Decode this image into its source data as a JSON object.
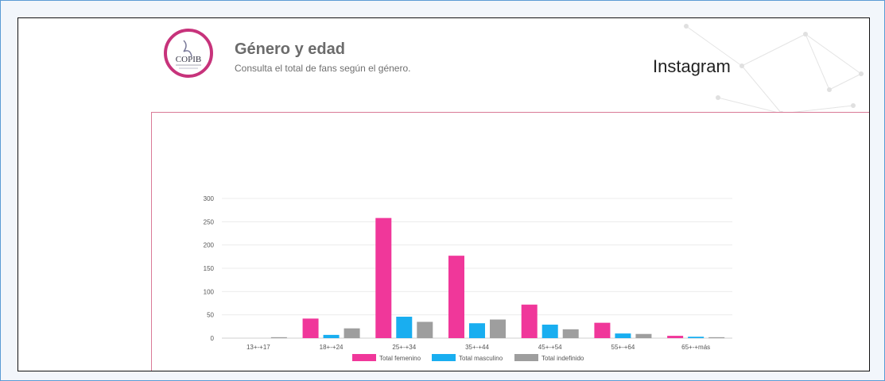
{
  "header": {
    "title": "Género y edad",
    "subtitle": "Consulta el total de fans según el género.",
    "platform": "Instagram",
    "logo_text": "COPIB"
  },
  "colors": {
    "femenino": "#f0379a",
    "masculino": "#19aef0",
    "indefinido": "#9e9e9e",
    "panel_border": "#d97a97",
    "logo_ring": "#c7337b"
  },
  "chart_data": {
    "type": "bar",
    "categories": [
      "13+-+17",
      "18+-+24",
      "25+-+34",
      "35+-+44",
      "45+-+54",
      "55+-+64",
      "65+-+más"
    ],
    "series": [
      {
        "name": "Total femenino",
        "values": [
          0,
          42,
          258,
          177,
          72,
          33,
          5
        ]
      },
      {
        "name": "Total masculino",
        "values": [
          0,
          7,
          46,
          32,
          29,
          10,
          3
        ]
      },
      {
        "name": "Total indefinido",
        "values": [
          2,
          21,
          35,
          40,
          19,
          9,
          2
        ]
      }
    ],
    "yticks": [
      0,
      50,
      100,
      150,
      200,
      250,
      300
    ],
    "ylim": [
      0,
      300
    ],
    "grid": true,
    "legend_position": "bottom-center"
  }
}
